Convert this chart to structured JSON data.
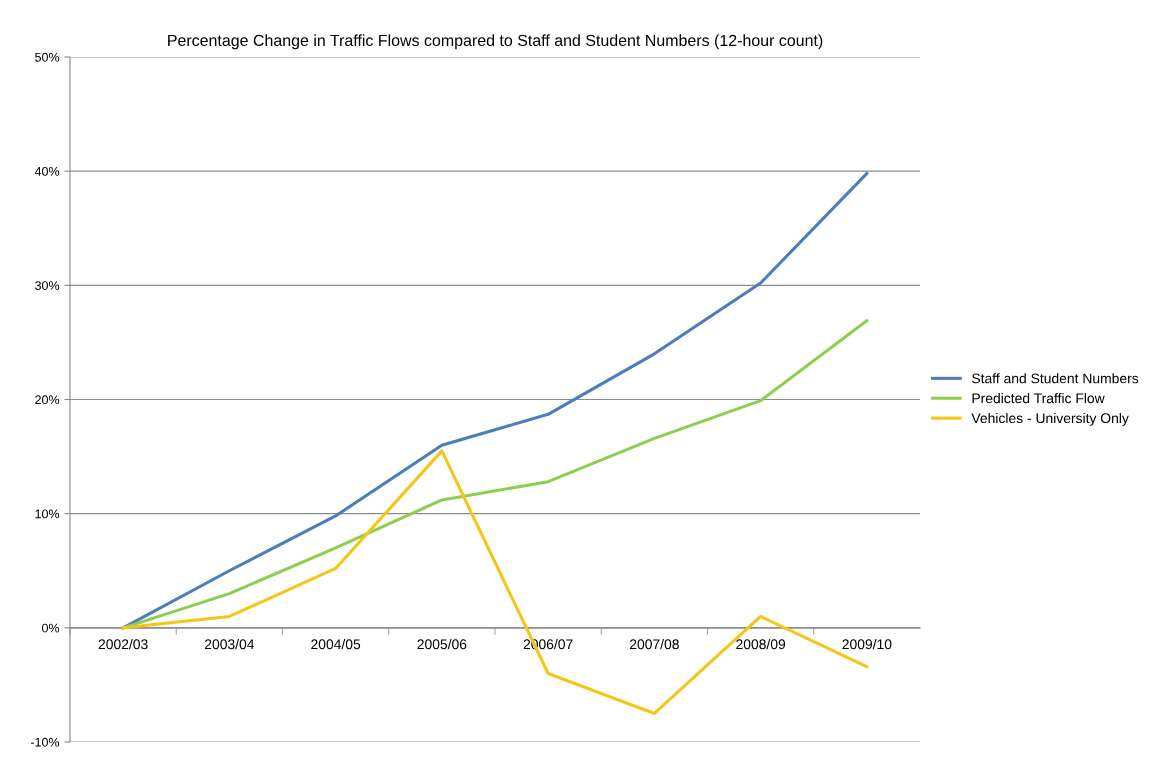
{
  "chart_data": {
    "type": "line",
    "title": "Percentage Change in Traffic Flows compared to Staff and Student Numbers (12-hour count)",
    "categories": [
      "2002/03",
      "2003/04",
      "2004/05",
      "2005/06",
      "2006/07",
      "2007/08",
      "2008/09",
      "2009/10"
    ],
    "series": [
      {
        "name": "Staff and Student Numbers",
        "color": "#4a7ebb",
        "values": [
          0,
          5.0,
          9.8,
          16.0,
          18.7,
          24.0,
          30.2,
          39.8
        ]
      },
      {
        "name": "Predicted Traffic Flow",
        "color": "#8ccf4f",
        "values": [
          0,
          3.0,
          7.0,
          11.2,
          12.8,
          16.6,
          19.9,
          26.9
        ]
      },
      {
        "name": "Vehicles - University Only",
        "color": "#f5c518",
        "values": [
          0,
          1.0,
          5.2,
          15.5,
          -4.0,
          -7.5,
          1.0,
          -3.4
        ]
      }
    ],
    "ylim": [
      -10,
      50
    ],
    "yticks": [
      {
        "value": -10,
        "label": "-10%"
      },
      {
        "value": 0,
        "label": "0%"
      },
      {
        "value": 10,
        "label": "10%"
      },
      {
        "value": 20,
        "label": "20%"
      },
      {
        "value": 30,
        "label": "30%"
      },
      {
        "value": 40,
        "label": "40%"
      },
      {
        "value": 50,
        "label": "50%"
      }
    ],
    "grid": "y",
    "legend": "right",
    "marker": "none",
    "line_style": "solid"
  }
}
